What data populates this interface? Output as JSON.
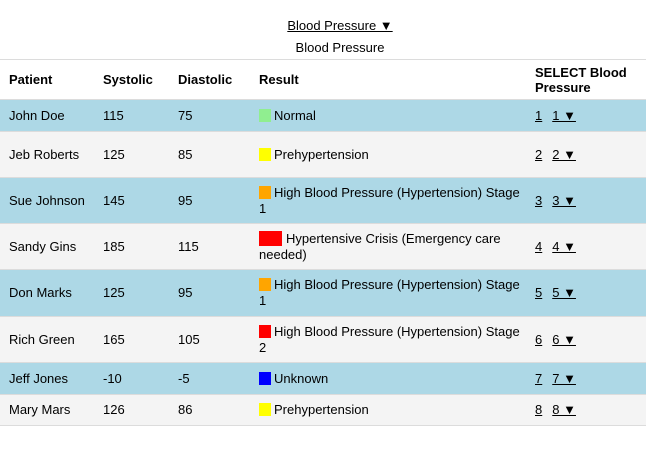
{
  "header": {
    "link_label": "Blood Pressure ▼",
    "subtitle": "Blood Pressure"
  },
  "table": {
    "columns": [
      "Patient",
      "Systolic",
      "Diastolic",
      "Result",
      "SELECT Blood Pressure"
    ],
    "rows": [
      {
        "patient": "John Doe",
        "systolic": "115",
        "diastolic": "75",
        "result": "Normal",
        "color": "#90ee90",
        "link": "1",
        "select": "1 ▼"
      },
      {
        "patient": "Jeb Roberts",
        "systolic": "125",
        "diastolic": "85",
        "result": "Prehypertension",
        "color": "#ffff00",
        "link": "2",
        "select": "2 ▼"
      },
      {
        "patient": "Sue Johnson",
        "systolic": "145",
        "diastolic": "95",
        "result": "High Blood Pressure (Hypertension) Stage 1",
        "color": "#ffa500",
        "link": "3",
        "select": "3 ▼"
      },
      {
        "patient": "Sandy Gins",
        "systolic": "185",
        "diastolic": "115",
        "result": "Hypertensive Crisis (Emergency care needed)",
        "color": "#ff0000",
        "link": "4",
        "select": "4 ▼"
      },
      {
        "patient": "Don Marks",
        "systolic": "125",
        "diastolic": "95",
        "result": "High Blood Pressure (Hypertension) Stage 1",
        "color": "#ffa500",
        "link": "5",
        "select": "5 ▼"
      },
      {
        "patient": "Rich Green",
        "systolic": "165",
        "diastolic": "105",
        "result": "High Blood Pressure (Hypertension) Stage 2",
        "color": "#ff0000",
        "link": "6",
        "select": "6 ▼"
      },
      {
        "patient": "Jeff Jones",
        "systolic": "-10",
        "diastolic": "-5",
        "result": "Unknown",
        "color": "#0000ff",
        "link": "7",
        "select": "7 ▼"
      },
      {
        "patient": "Mary Mars",
        "systolic": "126",
        "diastolic": "86",
        "result": "Prehypertension",
        "color": "#ffff00",
        "link": "8",
        "select": "8 ▼"
      }
    ]
  }
}
